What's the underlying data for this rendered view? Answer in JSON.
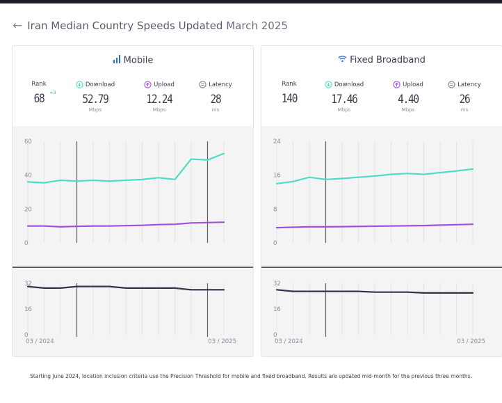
{
  "header": {
    "title_prefix": "Iran Median Country Speeds Updated",
    "title_date": "March 2025"
  },
  "panels": [
    {
      "title": "Mobile",
      "icon": "signal-bars-icon",
      "stats": {
        "rank_label": "Rank",
        "rank_value": "68",
        "rank_delta": "+3",
        "download_label": "Download",
        "download_value": "52.79",
        "download_unit": "Mbps",
        "upload_label": "Upload",
        "upload_value": "12.24",
        "upload_unit": "Mbps",
        "latency_label": "Latency",
        "latency_value": "28",
        "latency_unit": "ms"
      }
    },
    {
      "title": "Fixed Broadband",
      "icon": "wifi-icon",
      "stats": {
        "rank_label": "Rank",
        "rank_value": "140",
        "rank_delta": "",
        "download_label": "Download",
        "download_value": "17.46",
        "download_unit": "Mbps",
        "upload_label": "Upload",
        "upload_value": "4.40",
        "upload_unit": "Mbps",
        "latency_label": "Latency",
        "latency_value": "26",
        "latency_unit": "ms"
      }
    }
  ],
  "colors": {
    "download": "#4ddcc8",
    "upload": "#a24fe0",
    "latency": "#2f3447",
    "rank_delta": "#35b37a"
  },
  "chart_data": [
    {
      "type": "line",
      "name": "Mobile",
      "x": [
        "03/2024",
        "04/2024",
        "05/2024",
        "06/2024",
        "07/2024",
        "08/2024",
        "09/2024",
        "10/2024",
        "11/2024",
        "12/2024",
        "01/2025",
        "02/2025",
        "03/2025"
      ],
      "x_tick_labels": [
        "03 / 2024",
        "03 / 2025"
      ],
      "speed_ylim": [
        0,
        60
      ],
      "speed_yticks": [
        "0",
        "20",
        "40",
        "60"
      ],
      "latency_ylim": [
        0,
        32
      ],
      "latency_yticks": [
        "0",
        "16",
        "32"
      ],
      "series": [
        {
          "metric": "download",
          "values": [
            36,
            35.5,
            37,
            36.5,
            37,
            36.5,
            37,
            37.5,
            38.5,
            37.5,
            49.5,
            49,
            52.8
          ]
        },
        {
          "metric": "upload",
          "values": [
            10,
            10,
            9.5,
            9.8,
            10,
            10,
            10.2,
            10.4,
            10.8,
            11,
            11.8,
            12,
            12.24
          ]
        },
        {
          "metric": "latency",
          "values": [
            30,
            29,
            29,
            30,
            30,
            30,
            29,
            29,
            29,
            29,
            28,
            28,
            28
          ]
        }
      ],
      "vertical_markers": [
        "06/2024",
        "02/2025"
      ]
    },
    {
      "type": "line",
      "name": "Fixed Broadband",
      "x": [
        "03/2024",
        "04/2024",
        "05/2024",
        "06/2024",
        "07/2024",
        "08/2024",
        "09/2024",
        "10/2024",
        "11/2024",
        "12/2024",
        "01/2025",
        "02/2025",
        "03/2025"
      ],
      "x_tick_labels": [
        "03 / 2024",
        "03 / 2025"
      ],
      "speed_ylim": [
        0,
        24
      ],
      "speed_yticks": [
        "0",
        "8",
        "16",
        "24"
      ],
      "latency_ylim": [
        0,
        32
      ],
      "latency_yticks": [
        "0",
        "16",
        "32"
      ],
      "series": [
        {
          "metric": "download",
          "values": [
            14,
            14.5,
            15.5,
            15,
            15.2,
            15.5,
            15.8,
            16.2,
            16.4,
            16.2,
            16.6,
            17,
            17.46
          ]
        },
        {
          "metric": "upload",
          "values": [
            3.6,
            3.7,
            3.8,
            3.8,
            3.85,
            3.9,
            3.95,
            4.0,
            4.05,
            4.1,
            4.2,
            4.3,
            4.4
          ]
        },
        {
          "metric": "latency",
          "values": [
            28,
            27,
            27,
            27,
            27,
            27,
            26.5,
            26.5,
            26.5,
            26,
            26,
            26,
            26
          ]
        }
      ],
      "vertical_markers": [
        "06/2024"
      ]
    }
  ],
  "footnote": "Starting June 2024, location inclusion criteria use the Precision Threshold for mobile and fixed broadband. Results are updated mid-month for the previous three months."
}
